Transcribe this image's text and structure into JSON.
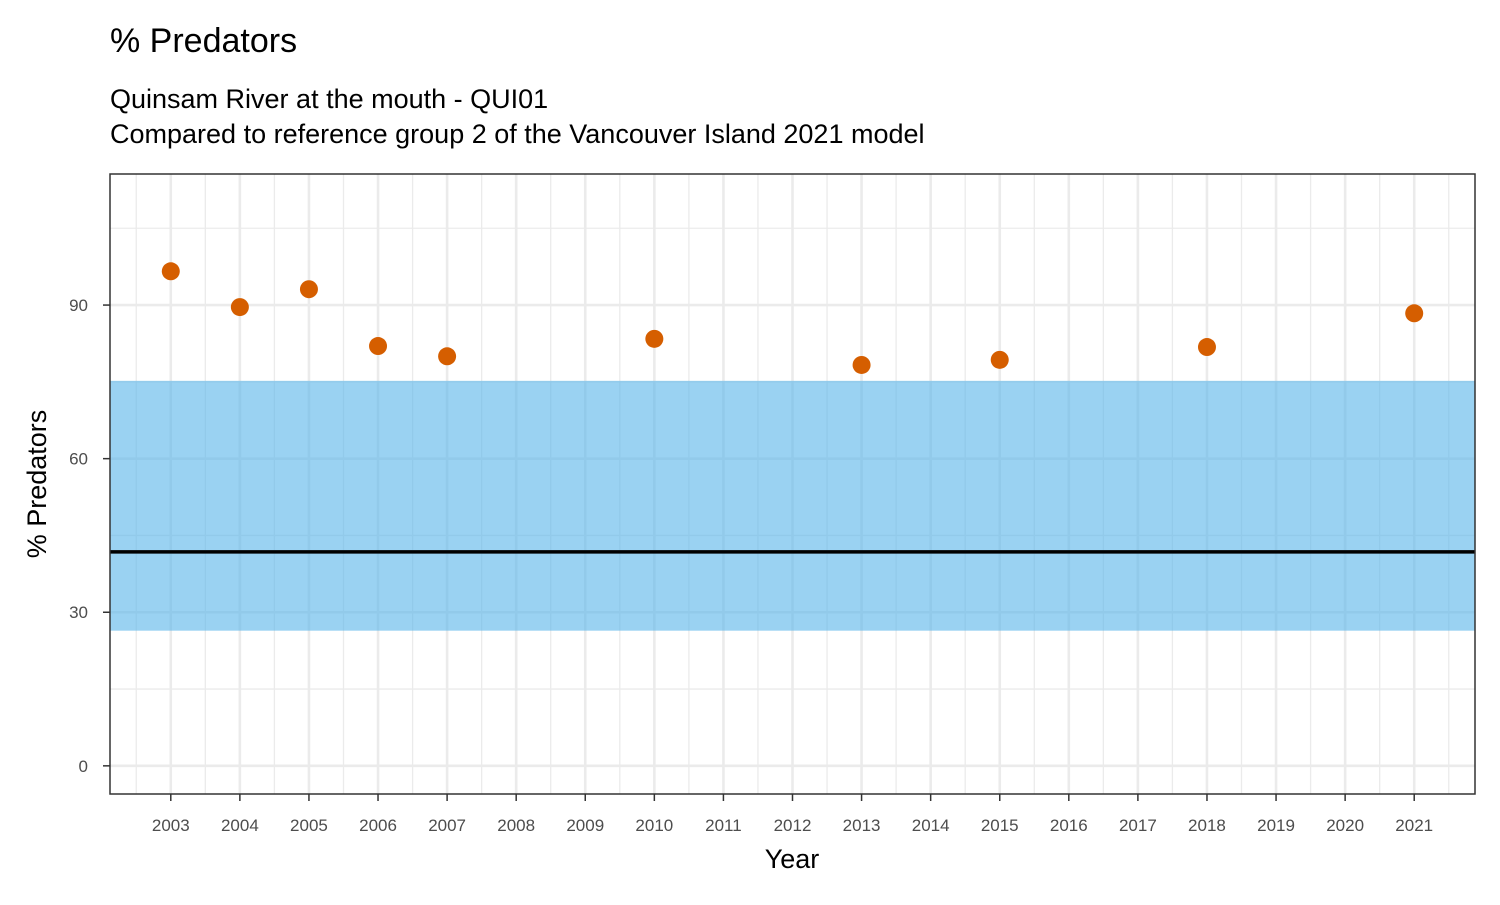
{
  "chart_data": {
    "type": "scatter",
    "title": "% Predators",
    "subtitle_lines": [
      "Quinsam River at the mouth - QUI01",
      "Compared to reference group 2 of the Vancouver Island 2021 model"
    ],
    "xlabel": "Year",
    "ylabel": "% Predators",
    "xlim": [
      2002.12,
      2021.88
    ],
    "ylim": [
      -5.5,
      115.6
    ],
    "x_ticks": [
      2003,
      2004,
      2005,
      2006,
      2007,
      2008,
      2009,
      2010,
      2011,
      2012,
      2013,
      2014,
      2015,
      2016,
      2017,
      2018,
      2019,
      2020,
      2021
    ],
    "y_ticks": [
      0,
      30,
      60,
      90
    ],
    "grid": true,
    "points": [
      {
        "x": 2003,
        "y": 96.6
      },
      {
        "x": 2004,
        "y": 89.6
      },
      {
        "x": 2005,
        "y": 93.1
      },
      {
        "x": 2006,
        "y": 82.0
      },
      {
        "x": 2007,
        "y": 80.0
      },
      {
        "x": 2010,
        "y": 83.4
      },
      {
        "x": 2013,
        "y": 78.3
      },
      {
        "x": 2015,
        "y": 79.3
      },
      {
        "x": 2018,
        "y": 81.8
      },
      {
        "x": 2021,
        "y": 88.4
      }
    ],
    "reference_band": [
      26.4,
      75.2
    ],
    "reference_line": 41.8,
    "colors": {
      "points": "#D55E00",
      "band": "#56B4E9",
      "line": "#000000",
      "grid": "#EBEBEB"
    }
  }
}
